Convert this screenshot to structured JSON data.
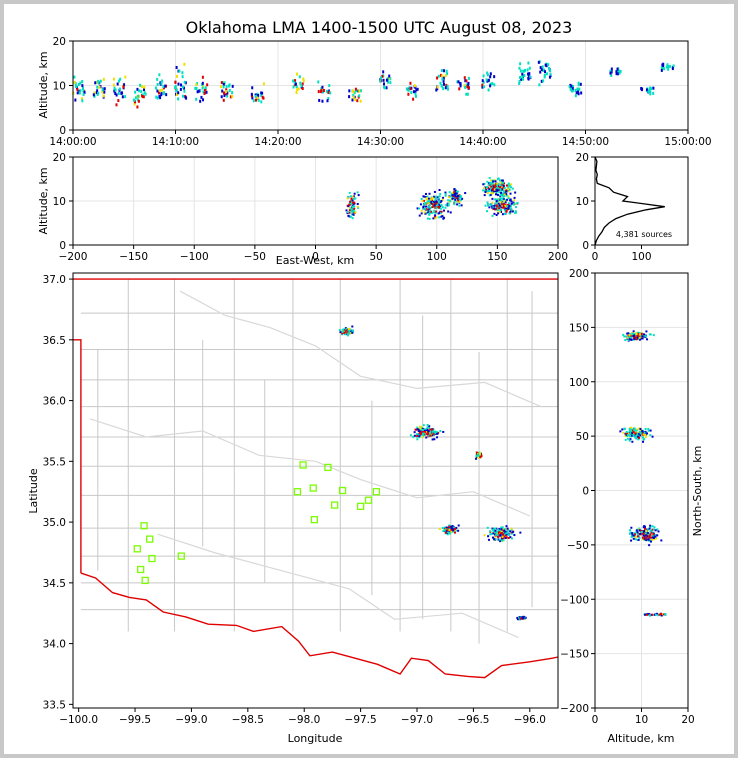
{
  "title": "Oklahoma LMA 1400-1500 UTC August 08, 2023",
  "colors": {
    "background": "#ffffff",
    "frame": "#c8c8c8",
    "state_border": "#e00000",
    "county_lines": "#c8c8c8",
    "stations": "#7cfc00",
    "sources_cold": "#0000c8",
    "sources_mid": "#00e0c0",
    "sources_warm": "#f0e000",
    "sources_hot": "#e00000",
    "histogram": "#000000"
  },
  "chart_data": [
    {
      "id": "time_height",
      "type": "scatter",
      "xlabel": "",
      "ylabel": "Altitude, km",
      "xlim": [
        "14:00:00",
        "15:00:00"
      ],
      "ylim": [
        0,
        20
      ],
      "x_ticks": [
        "14:00:00",
        "14:10:00",
        "14:20:00",
        "14:30:00",
        "14:40:00",
        "14:50:00",
        "15:00:00"
      ],
      "y_ticks": [
        "0",
        "10",
        "20"
      ],
      "clusters": [
        {
          "time_min": 0.5,
          "alt": 9,
          "spread": 3
        },
        {
          "time_min": 2.5,
          "alt": 9,
          "spread": 3
        },
        {
          "time_min": 4.5,
          "alt": 9,
          "spread": 3
        },
        {
          "time_min": 6.5,
          "alt": 8,
          "spread": 3
        },
        {
          "time_min": 8.5,
          "alt": 9,
          "spread": 3
        },
        {
          "time_min": 10.5,
          "alt": 10,
          "spread": 4
        },
        {
          "time_min": 12.5,
          "alt": 9,
          "spread": 3
        },
        {
          "time_min": 15,
          "alt": 9,
          "spread": 3
        },
        {
          "time_min": 18,
          "alt": 8,
          "spread": 2
        },
        {
          "time_min": 22,
          "alt": 10,
          "spread": 2
        },
        {
          "time_min": 24.5,
          "alt": 9,
          "spread": 2
        },
        {
          "time_min": 27.5,
          "alt": 8,
          "spread": 2
        },
        {
          "time_min": 30.5,
          "alt": 11,
          "spread": 2
        },
        {
          "time_min": 33,
          "alt": 9,
          "spread": 2
        },
        {
          "time_min": 36,
          "alt": 11,
          "spread": 3
        },
        {
          "time_min": 38,
          "alt": 10,
          "spread": 2
        },
        {
          "time_min": 40.5,
          "alt": 11,
          "spread": 2
        },
        {
          "time_min": 44,
          "alt": 12,
          "spread": 3
        },
        {
          "time_min": 46,
          "alt": 13,
          "spread": 3
        },
        {
          "time_min": 49,
          "alt": 9,
          "spread": 2
        },
        {
          "time_min": 53,
          "alt": 13,
          "spread": 1
        },
        {
          "time_min": 56,
          "alt": 9,
          "spread": 1
        },
        {
          "time_min": 58,
          "alt": 14,
          "spread": 1
        }
      ]
    },
    {
      "id": "ew_height",
      "type": "scatter",
      "xlabel": "East-West, km",
      "ylabel": "Altitude, km",
      "xlim": [
        -200,
        200
      ],
      "ylim": [
        0,
        20
      ],
      "x_ticks": [
        "−200",
        "−150",
        "−100",
        "−50",
        "0",
        "50",
        "100",
        "150",
        "200"
      ],
      "y_ticks": [
        "0",
        "10",
        "20"
      ],
      "clusters": [
        {
          "x": 30,
          "alt": 9,
          "sx": 5,
          "sz": 3
        },
        {
          "x": 97,
          "alt": 9,
          "sx": 12,
          "sz": 3
        },
        {
          "x": 115,
          "alt": 11,
          "sx": 6,
          "sz": 2
        },
        {
          "x": 155,
          "alt": 9,
          "sx": 12,
          "sz": 2
        },
        {
          "x": 150,
          "alt": 13,
          "sx": 12,
          "sz": 2
        }
      ]
    },
    {
      "id": "alt_histogram",
      "type": "line",
      "xlim": [
        0,
        200
      ],
      "ylim": [
        0,
        20
      ],
      "x_ticks": [
        "0",
        "100"
      ],
      "y_ticks": [
        "0",
        "10",
        "20"
      ],
      "annotation": "4,381 sources",
      "profile": [
        {
          "count": 0,
          "alt": 0
        },
        {
          "count": 3,
          "alt": 1
        },
        {
          "count": 8,
          "alt": 2
        },
        {
          "count": 15,
          "alt": 3
        },
        {
          "count": 20,
          "alt": 4
        },
        {
          "count": 30,
          "alt": 5
        },
        {
          "count": 45,
          "alt": 6
        },
        {
          "count": 70,
          "alt": 7
        },
        {
          "count": 110,
          "alt": 8
        },
        {
          "count": 150,
          "alt": 8.7
        },
        {
          "count": 110,
          "alt": 9.3
        },
        {
          "count": 60,
          "alt": 10
        },
        {
          "count": 70,
          "alt": 11
        },
        {
          "count": 40,
          "alt": 12
        },
        {
          "count": 30,
          "alt": 13
        },
        {
          "count": 5,
          "alt": 14
        },
        {
          "count": 3,
          "alt": 15
        },
        {
          "count": 5,
          "alt": 16
        },
        {
          "count": 2,
          "alt": 17
        },
        {
          "count": 3,
          "alt": 18
        },
        {
          "count": 4,
          "alt": 19
        },
        {
          "count": 0,
          "alt": 20
        }
      ]
    },
    {
      "id": "plan_view",
      "type": "scatter",
      "xlabel": "Longitude",
      "ylabel": "Latitude",
      "xlim": [
        -100.05,
        -95.75
      ],
      "ylim": [
        33.47,
        37.05
      ],
      "x_ticks": [
        -100.0,
        -99.5,
        -99.0,
        -98.5,
        -98.0,
        -97.5,
        -97.0,
        -96.5,
        -96.0
      ],
      "y_ticks": [
        33.5,
        34.0,
        34.5,
        35.0,
        35.5,
        36.0,
        36.5,
        37.0
      ],
      "stations": [
        {
          "lon": -99.48,
          "lat": 34.78
        },
        {
          "lon": -99.42,
          "lat": 34.97
        },
        {
          "lon": -99.37,
          "lat": 34.86
        },
        {
          "lon": -99.35,
          "lat": 34.7
        },
        {
          "lon": -99.45,
          "lat": 34.61
        },
        {
          "lon": -99.41,
          "lat": 34.52
        },
        {
          "lon": -99.09,
          "lat": 34.72
        },
        {
          "lon": -98.01,
          "lat": 35.47
        },
        {
          "lon": -98.06,
          "lat": 35.25
        },
        {
          "lon": -97.92,
          "lat": 35.28
        },
        {
          "lon": -97.91,
          "lat": 35.02
        },
        {
          "lon": -97.79,
          "lat": 35.45
        },
        {
          "lon": -97.73,
          "lat": 35.14
        },
        {
          "lon": -97.66,
          "lat": 35.26
        },
        {
          "lon": -97.5,
          "lat": 35.13
        },
        {
          "lon": -97.43,
          "lat": 35.18
        },
        {
          "lon": -97.36,
          "lat": 35.25
        }
      ],
      "clusters": [
        {
          "lon": -97.62,
          "lat": 36.57,
          "slon": 0.06,
          "slat": 0.03
        },
        {
          "lon": -96.92,
          "lat": 35.74,
          "slon": 0.12,
          "slat": 0.05
        },
        {
          "lon": -96.45,
          "lat": 35.55,
          "slon": 0.03,
          "slat": 0.03
        },
        {
          "lon": -96.71,
          "lat": 34.94,
          "slon": 0.08,
          "slat": 0.03
        },
        {
          "lon": -96.25,
          "lat": 34.9,
          "slon": 0.12,
          "slat": 0.05
        },
        {
          "lon": -96.07,
          "lat": 34.21,
          "slon": 0.04,
          "slat": 0.01
        }
      ]
    },
    {
      "id": "ns_height",
      "type": "scatter",
      "xlabel": "Altitude, km",
      "ylabel": "North-South, km",
      "xlim": [
        0,
        20
      ],
      "ylim": [
        -200,
        200
      ],
      "x_ticks": [
        "0",
        "10",
        "20"
      ],
      "y_ticks": [
        "−200",
        "−150",
        "−100",
        "−50",
        "0",
        "50",
        "100",
        "150",
        "200"
      ],
      "clusters": [
        {
          "alt": 9,
          "y": 142,
          "sz": 3,
          "sy": 4
        },
        {
          "alt": 9,
          "y": 52,
          "sz": 3,
          "sy": 6
        },
        {
          "alt": 11,
          "y": -40,
          "sz": 3,
          "sy": 7
        },
        {
          "alt": 13,
          "y": -114,
          "sz": 3,
          "sy": 1
        }
      ]
    }
  ]
}
